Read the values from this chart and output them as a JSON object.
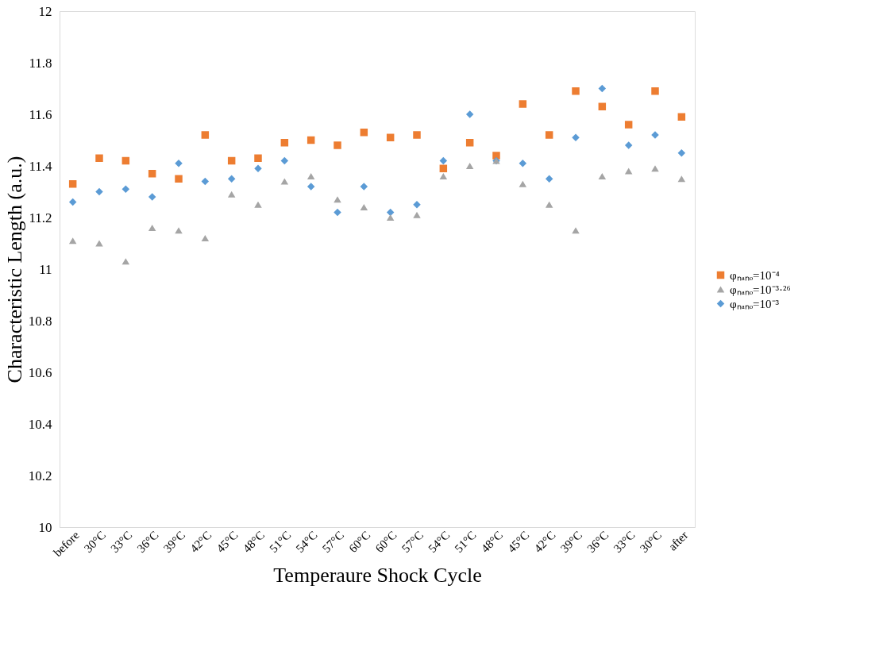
{
  "chart_data": {
    "type": "scatter",
    "xlabel": "Temperaure Shock Cycle",
    "ylabel": "Characteristic Length (a.u.)",
    "categories": [
      "before",
      "30°C",
      "33°C",
      "36°C",
      "39°C",
      "42°C",
      "45°C",
      "48°C",
      "51°C",
      "54°C",
      "57°C",
      "60°C",
      "60°C",
      "57°C",
      "54°C",
      "51°C",
      "48°C",
      "45°C",
      "42°C",
      "39°C",
      "36°C",
      "33°C",
      "30°C",
      "after"
    ],
    "series": [
      {
        "name": "φₙₐₙₒ=10⁻⁴",
        "color": "#ed7d31",
        "marker": "square",
        "values": [
          11.33,
          11.43,
          11.42,
          11.37,
          11.35,
          11.52,
          11.42,
          11.43,
          11.49,
          11.5,
          11.48,
          11.53,
          11.51,
          11.52,
          11.39,
          11.49,
          11.44,
          11.64,
          11.52,
          11.69,
          11.63,
          11.56,
          11.69,
          11.59
        ]
      },
      {
        "name": "φₙₐₙₒ=10⁻³·²⁶",
        "color": "#a5a5a5",
        "marker": "triangle",
        "values": [
          11.11,
          11.1,
          11.03,
          11.16,
          11.15,
          11.12,
          11.29,
          11.25,
          11.34,
          11.36,
          11.27,
          11.24,
          11.2,
          11.21,
          11.36,
          11.4,
          11.42,
          11.33,
          11.25,
          11.15,
          11.36,
          11.38,
          11.39,
          11.35
        ]
      },
      {
        "name": "φₙₐₙₒ=10⁻³",
        "color": "#5b9bd5",
        "marker": "diamond",
        "values": [
          11.26,
          11.3,
          11.31,
          11.28,
          11.41,
          11.34,
          11.35,
          11.39,
          11.42,
          11.32,
          11.22,
          11.32,
          11.22,
          11.25,
          11.42,
          11.6,
          11.42,
          11.41,
          11.35,
          11.51,
          11.7,
          11.48,
          11.52,
          11.45
        ]
      }
    ],
    "ylim": [
      10,
      12
    ],
    "yticks": [
      10,
      10.2,
      10.4,
      10.6,
      10.8,
      11,
      11.2,
      11.4,
      11.6,
      11.8,
      12
    ],
    "grid": false,
    "legend": "right"
  }
}
